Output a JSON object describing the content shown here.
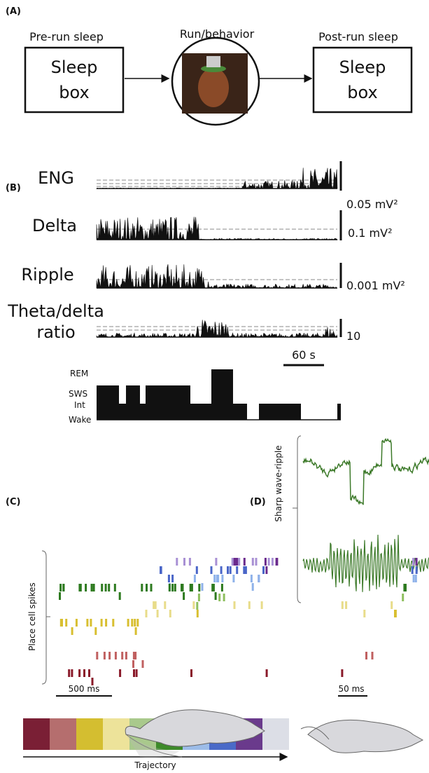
{
  "panel_a": {
    "label": "(A)",
    "pre_title": "Pre-run sleep",
    "run_title": "Run/behavior",
    "post_title": "Post-run sleep",
    "boxes": [
      {
        "line1": "Sleep",
        "line2": "box"
      },
      {
        "line1": "Sleep",
        "line2": "box"
      }
    ]
  },
  "panel_b": {
    "label": "(B)",
    "traces": [
      {
        "name": "ENG",
        "scale": "0.05 mV²"
      },
      {
        "name": "Delta",
        "scale": "0.1 mV²"
      },
      {
        "name": "Ripple",
        "scale": "0.001 mV²"
      },
      {
        "name_line1": "Theta/delta",
        "name_line2": "ratio",
        "scale": "10"
      }
    ],
    "time_scale": "60 s",
    "states": [
      "REM",
      "SWS",
      "Int",
      "Wake"
    ]
  },
  "panel_c": {
    "label": "(C)",
    "y_label": "Place cell spikes",
    "time_scale": "500 ms",
    "trajectory": "Trajectory"
  },
  "panel_d": {
    "label": "(D)",
    "y_label": "Sharp wave-ripple",
    "time_scale": "50 ms"
  }
}
